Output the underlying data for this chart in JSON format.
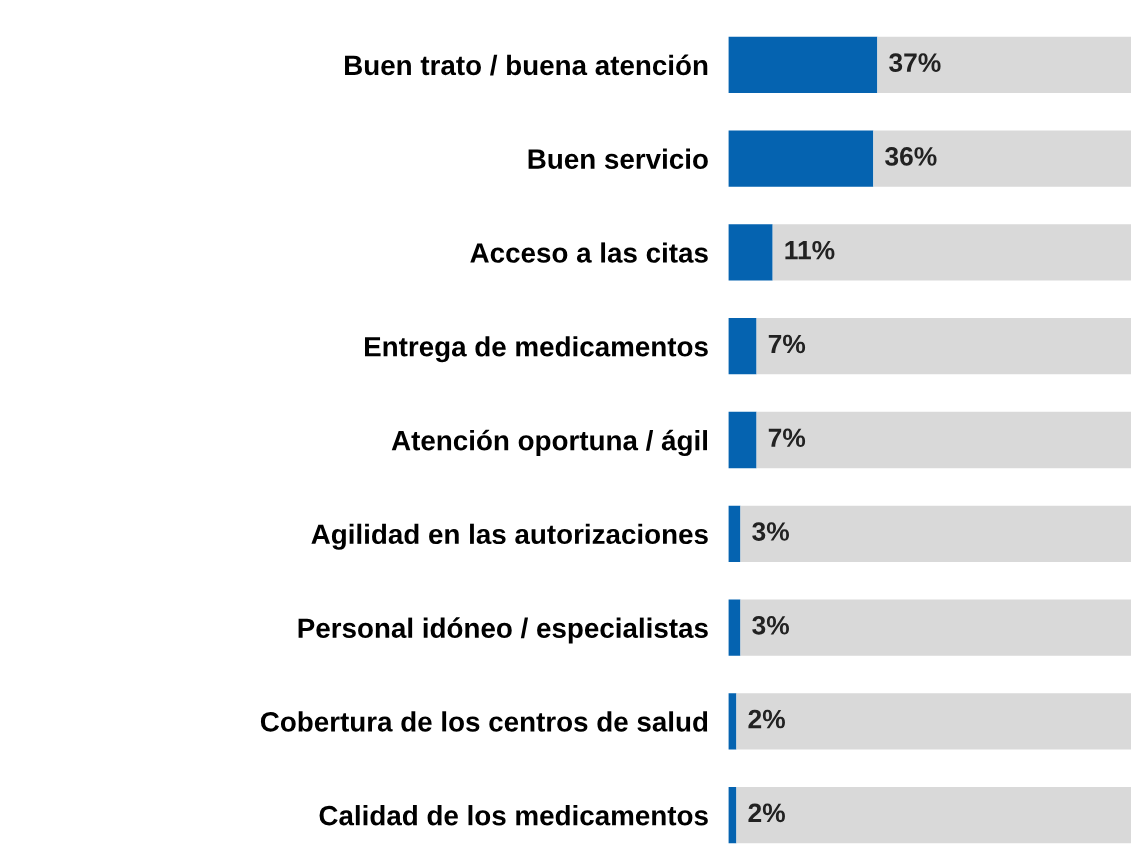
{
  "chart_data": {
    "type": "bar",
    "orientation": "horizontal",
    "stacked": true,
    "categories": [
      "Buen trato / buena atención",
      "Buen servicio",
      "Acceso a las citas",
      "Entrega de medicamentos",
      "Atención oportuna / ágil",
      "Agilidad en las autorizaciones",
      "Personal idóneo / especialistas",
      "Cobertura de los centros de salud",
      "Calidad de los medicamentos"
    ],
    "series": [
      {
        "color": "#0563b0",
        "values": [
          37,
          36,
          11,
          7,
          7,
          3,
          3,
          2,
          2
        ],
        "value_labels": [
          "37%",
          "36%",
          "11%",
          "7%",
          "7%",
          "3%",
          "3%",
          "2%",
          "2%"
        ]
      },
      {
        "color": "#d9d9d9",
        "values": [
          63,
          64,
          89,
          93,
          93,
          97,
          97,
          98,
          98
        ]
      }
    ],
    "xlim": [
      0,
      100
    ],
    "tick_labels": "y",
    "grid": false,
    "legend": false
  }
}
